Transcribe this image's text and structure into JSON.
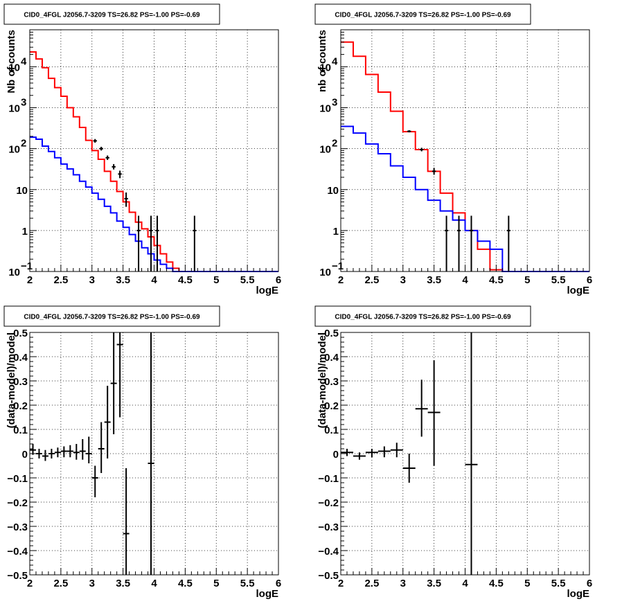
{
  "chart_data": [
    {
      "type": "line",
      "title": "CID0_4FGL J2056.7-3209 TS=26.82 PS=-1.00 PS=-0.69",
      "xlabel": "logE",
      "ylabel": "Nb of counts",
      "xlim": [
        2,
        6
      ],
      "ylim": [
        0.1,
        80000
      ],
      "yscale": "log",
      "grid": true,
      "xticks": [
        "2",
        "2.5",
        "3",
        "3.5",
        "4",
        "4.5",
        "5",
        "5.5",
        "6"
      ],
      "yticks": [
        {
          "value": 0.1,
          "base": "10",
          "exp": "−1"
        },
        {
          "value": 1,
          "label": "1"
        },
        {
          "value": 10,
          "label": "10"
        },
        {
          "value": 100,
          "base": "10",
          "exp": "2"
        },
        {
          "value": 1000,
          "base": "10",
          "exp": "3"
        },
        {
          "value": 10000,
          "base": "10",
          "exp": "4"
        }
      ],
      "bin_edges": [
        2,
        2.1,
        2.2,
        2.3,
        2.4,
        2.5,
        2.6,
        2.7,
        2.8,
        2.9,
        3,
        3.1,
        3.2,
        3.3,
        3.4,
        3.5,
        3.6,
        3.7,
        3.8,
        3.9,
        4,
        4.1,
        4.2,
        4.3,
        4.4,
        4.5,
        4.6,
        4.7,
        4.8,
        4.9,
        5,
        5.1,
        5.2,
        5.3,
        5.4,
        5.5,
        5.6,
        5.7,
        5.8,
        5.9,
        6
      ],
      "series": [
        {
          "color": "#ff0000",
          "values": [
            23000,
            15500,
            9500,
            5200,
            3100,
            1900,
            1000,
            600,
            330,
            160,
            90,
            55,
            28,
            16,
            9,
            5,
            2.8,
            1.6,
            1.1,
            0.7,
            0.43,
            0.27,
            0.17,
            0.12,
            0.1,
            0.1,
            0.1,
            0.1,
            0.1,
            0.1,
            0.1,
            0.1,
            0.1,
            0.1,
            0.1,
            0.1,
            0.1,
            0.1,
            0.1,
            0.1
          ]
        },
        {
          "color": "#0000ff",
          "values": [
            190,
            170,
            115,
            85,
            60,
            42,
            32,
            23,
            16,
            11.5,
            8.2,
            5.8,
            3.9,
            2.7,
            1.7,
            1.2,
            0.8,
            0.55,
            0.38,
            0.27,
            0.19,
            0.15,
            0.12,
            0.1,
            0.1,
            0.1,
            0.1,
            0.1,
            0.1,
            0.1,
            0.1,
            0.1,
            0.1,
            0.1,
            0.1,
            0.1,
            0.1,
            0.1,
            0.1,
            0.1
          ]
        }
      ],
      "points": [
        {
          "x": 3.05,
          "y": 155,
          "lo": 140,
          "hi": 172
        },
        {
          "x": 3.15,
          "y": 100,
          "lo": 90,
          "hi": 111
        },
        {
          "x": 3.25,
          "y": 60,
          "lo": 53,
          "hi": 68
        },
        {
          "x": 3.35,
          "y": 36,
          "lo": 31,
          "hi": 42
        },
        {
          "x": 3.45,
          "y": 24,
          "lo": 19,
          "hi": 29
        },
        {
          "x": 3.55,
          "y": 6,
          "lo": 3.8,
          "hi": 8.5
        },
        {
          "x": 3.75,
          "y": 1,
          "lo": 0.1,
          "hi": 2.3
        },
        {
          "x": 3.95,
          "y": 1,
          "lo": 0.1,
          "hi": 2.3
        },
        {
          "x": 4.05,
          "y": 1,
          "lo": 0.1,
          "hi": 2.3
        },
        {
          "x": 4.65,
          "y": 1,
          "lo": 0.1,
          "hi": 2.3
        }
      ]
    },
    {
      "type": "line",
      "title": "CID0_4FGL J2056.7-3209 TS=26.82 PS=-1.00 PS=-0.69",
      "xlabel": "logE",
      "ylabel": "nb of counts",
      "xlim": [
        2,
        6
      ],
      "ylim": [
        0.1,
        80000
      ],
      "yscale": "log",
      "grid": true,
      "xticks": [
        "2",
        "2.5",
        "3",
        "3.5",
        "4",
        "4.5",
        "5",
        "5.5",
        "6"
      ],
      "yticks": [
        {
          "value": 0.1,
          "base": "10",
          "exp": "−1"
        },
        {
          "value": 1,
          "label": "1"
        },
        {
          "value": 10,
          "label": "10"
        },
        {
          "value": 100,
          "base": "10",
          "exp": "2"
        },
        {
          "value": 1000,
          "base": "10",
          "exp": "3"
        },
        {
          "value": 10000,
          "base": "10",
          "exp": "4"
        }
      ],
      "bin_edges": [
        2,
        2.2,
        2.4,
        2.6,
        2.8,
        3,
        3.2,
        3.4,
        3.6,
        3.8,
        4,
        4.2,
        4.4,
        4.6,
        4.8,
        5,
        5.2,
        5.4,
        5.6,
        5.8,
        6
      ],
      "series": [
        {
          "color": "#ff0000",
          "values": [
            40000,
            18000,
            6500,
            2400,
            820,
            260,
            95,
            28,
            8.2,
            2.7,
            1,
            0.35,
            0.11,
            0.1,
            0.1,
            0.1,
            0.1,
            0.1,
            0.1,
            0.1
          ]
        },
        {
          "color": "#0000ff",
          "values": [
            350,
            240,
            130,
            75,
            38,
            20,
            10,
            5.5,
            3,
            1.8,
            1,
            0.55,
            0.35,
            0.1,
            0.1,
            0.1,
            0.1,
            0.1,
            0.1,
            0.1
          ]
        }
      ],
      "points": [
        {
          "x": 3.1,
          "y": 265,
          "lo": 250,
          "hi": 282
        },
        {
          "x": 3.3,
          "y": 95,
          "lo": 86,
          "hi": 105
        },
        {
          "x": 3.5,
          "y": 28,
          "lo": 23,
          "hi": 34
        },
        {
          "x": 3.7,
          "y": 1,
          "lo": 0.1,
          "hi": 2.3
        },
        {
          "x": 3.9,
          "y": 1,
          "lo": 0.1,
          "hi": 2.3
        },
        {
          "x": 4.1,
          "y": 1,
          "lo": 0.1,
          "hi": 2.3
        },
        {
          "x": 4.7,
          "y": 1,
          "lo": 0.1,
          "hi": 2.3
        }
      ]
    },
    {
      "type": "scatter",
      "title": "CID0_4FGL J2056.7-3209 TS=26.82 PS=-1.00 PS=-0.69",
      "xlabel": "logE",
      "ylabel": "(data-model)/model",
      "xlim": [
        2,
        6
      ],
      "ylim": [
        -0.5,
        0.5
      ],
      "yscale": "linear",
      "grid": true,
      "xticks": [
        "2",
        "2.5",
        "3",
        "3.5",
        "4",
        "4.5",
        "5",
        "5.5",
        "6"
      ],
      "yticks": [
        {
          "value": -0.5,
          "label": "−0.5"
        },
        {
          "value": -0.4,
          "label": "−0.4"
        },
        {
          "value": -0.3,
          "label": "−0.3"
        },
        {
          "value": -0.2,
          "label": "−0.2"
        },
        {
          "value": -0.1,
          "label": "−0.1"
        },
        {
          "value": 0,
          "label": "0"
        },
        {
          "value": 0.1,
          "label": "0.1"
        },
        {
          "value": 0.2,
          "label": "0.2"
        },
        {
          "value": 0.3,
          "label": "0.3"
        },
        {
          "value": 0.4,
          "label": "0.4"
        },
        {
          "value": 0.5,
          "label": "0.5"
        }
      ],
      "xerr": 0.05,
      "points": [
        {
          "x": 2.05,
          "y": 0.015,
          "lo": -0.005,
          "hi": 0.04
        },
        {
          "x": 2.15,
          "y": 0.0,
          "lo": -0.02,
          "hi": 0.02
        },
        {
          "x": 2.25,
          "y": -0.01,
          "lo": -0.03,
          "hi": 0.015
        },
        {
          "x": 2.35,
          "y": 0.0,
          "lo": -0.02,
          "hi": 0.02
        },
        {
          "x": 2.45,
          "y": 0.005,
          "lo": -0.015,
          "hi": 0.025
        },
        {
          "x": 2.55,
          "y": 0.01,
          "lo": -0.015,
          "hi": 0.03
        },
        {
          "x": 2.65,
          "y": 0.01,
          "lo": -0.015,
          "hi": 0.035
        },
        {
          "x": 2.75,
          "y": 0.005,
          "lo": -0.025,
          "hi": 0.04
        },
        {
          "x": 2.85,
          "y": 0.01,
          "lo": -0.025,
          "hi": 0.06
        },
        {
          "x": 2.95,
          "y": 0.0,
          "lo": -0.04,
          "hi": 0.07
        },
        {
          "x": 3.05,
          "y": -0.1,
          "lo": -0.18,
          "hi": -0.05
        },
        {
          "x": 3.15,
          "y": 0.02,
          "lo": -0.08,
          "hi": 0.13
        },
        {
          "x": 3.25,
          "y": 0.13,
          "lo": -0.02,
          "hi": 0.28
        },
        {
          "x": 3.35,
          "y": 0.29,
          "lo": 0.08,
          "hi": 0.5
        },
        {
          "x": 3.45,
          "y": 0.45,
          "lo": 0.15,
          "hi": 0.5
        },
        {
          "x": 3.55,
          "y": -0.33,
          "lo": -0.5,
          "hi": -0.06
        },
        {
          "x": 3.95,
          "y": -0.04,
          "lo": -0.5,
          "hi": 0.5
        }
      ]
    },
    {
      "type": "scatter",
      "title": "CID0_4FGL J2056.7-3209 TS=26.82 PS=-1.00 PS=-0.69",
      "xlabel": "logE",
      "ylabel": "(data-model)/model",
      "xlim": [
        2,
        6
      ],
      "ylim": [
        -0.5,
        0.5
      ],
      "yscale": "linear",
      "grid": true,
      "xticks": [
        "2",
        "2.5",
        "3",
        "3.5",
        "4",
        "4.5",
        "5",
        "5.5",
        "6"
      ],
      "yticks": [
        {
          "value": -0.5,
          "label": "−0.5"
        },
        {
          "value": -0.4,
          "label": "−0.4"
        },
        {
          "value": -0.3,
          "label": "−0.3"
        },
        {
          "value": -0.2,
          "label": "−0.2"
        },
        {
          "value": -0.1,
          "label": "−0.1"
        },
        {
          "value": 0,
          "label": "0"
        },
        {
          "value": 0.1,
          "label": "0.1"
        },
        {
          "value": 0.2,
          "label": "0.2"
        },
        {
          "value": 0.3,
          "label": "0.3"
        },
        {
          "value": 0.4,
          "label": "0.4"
        },
        {
          "value": 0.5,
          "label": "0.5"
        }
      ],
      "xerr": 0.1,
      "points": [
        {
          "x": 2.1,
          "y": 0.005,
          "lo": -0.01,
          "hi": 0.02
        },
        {
          "x": 2.3,
          "y": -0.01,
          "lo": -0.025,
          "hi": 0.005
        },
        {
          "x": 2.5,
          "y": 0.005,
          "lo": -0.015,
          "hi": 0.02
        },
        {
          "x": 2.7,
          "y": 0.01,
          "lo": -0.015,
          "hi": 0.03
        },
        {
          "x": 2.9,
          "y": 0.015,
          "lo": -0.015,
          "hi": 0.045
        },
        {
          "x": 3.1,
          "y": -0.06,
          "lo": -0.12,
          "hi": 0.0
        },
        {
          "x": 3.3,
          "y": 0.185,
          "lo": 0.07,
          "hi": 0.305
        },
        {
          "x": 3.5,
          "y": 0.17,
          "lo": -0.05,
          "hi": 0.385
        },
        {
          "x": 4.1,
          "y": -0.045,
          "lo": -0.5,
          "hi": 0.5
        }
      ]
    }
  ]
}
